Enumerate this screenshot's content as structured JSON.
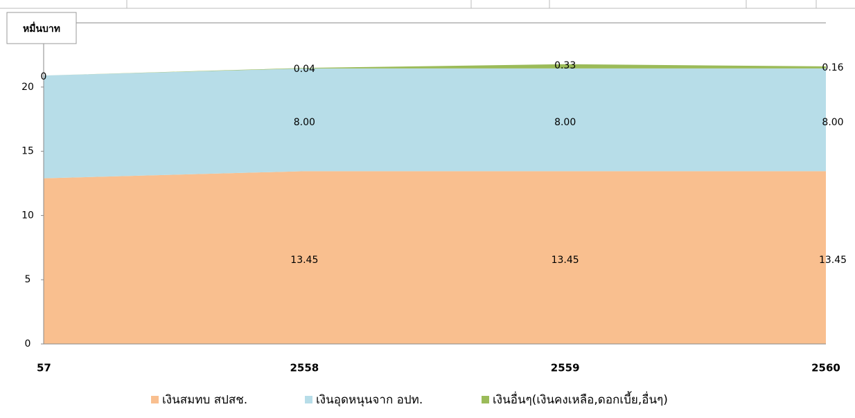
{
  "chart_data": {
    "type": "stacked_area",
    "y_label": "หมื่นบาท",
    "categories": [
      "57",
      "2558",
      "2559",
      "2560"
    ],
    "series": [
      {
        "name": "เงินสมทบ สปสช.",
        "color": "#f9bf8f",
        "values": [
          12.9,
          13.45,
          13.45,
          13.45
        ],
        "value_labels": [
          null,
          "13.45",
          "13.45",
          "13.45"
        ]
      },
      {
        "name": "เงินอุดหนุนจาก อปท.",
        "color": "#b7dde8",
        "values": [
          8,
          8,
          8,
          8
        ],
        "value_labels": [
          null,
          "8.00",
          "8.00",
          "8.00"
        ]
      },
      {
        "name": "เงินอื่นๆ(เงินคงเหลือ,ดอกเบี้ย,อื่นๆ)",
        "color": "#9bbb59",
        "values": [
          0,
          0.04,
          0.33,
          0.16
        ],
        "value_labels": [
          "0",
          "0.04",
          "0.33",
          "0.16"
        ]
      }
    ],
    "ylim": [
      0,
      25
    ],
    "yticks": [
      0,
      5,
      10,
      15,
      20
    ],
    "legend": "bottom"
  }
}
